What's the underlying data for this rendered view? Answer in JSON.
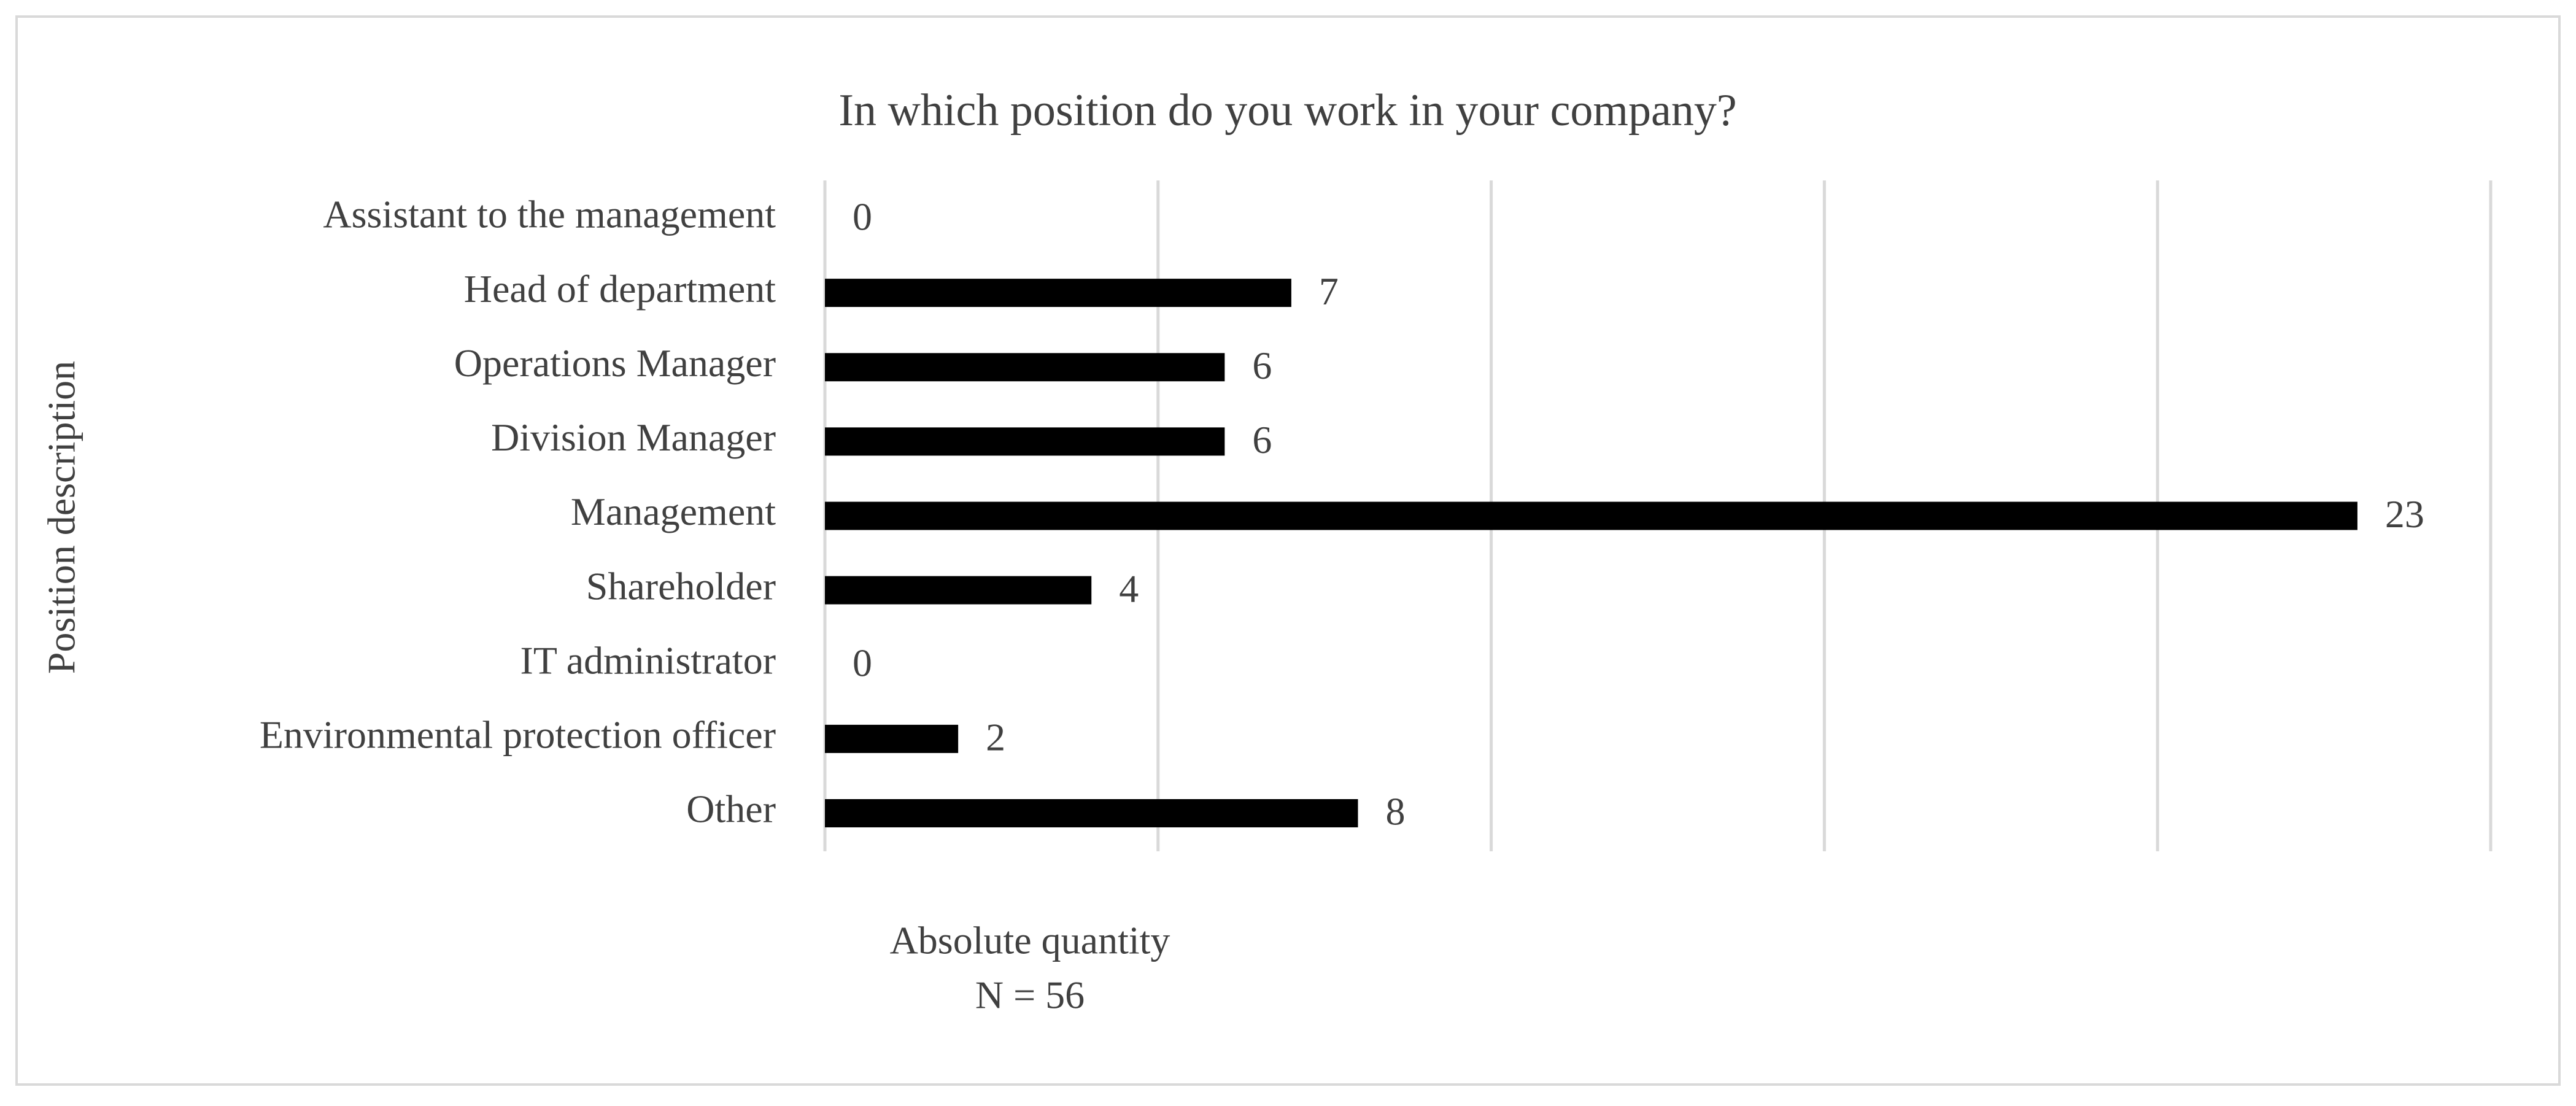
{
  "chart_data": {
    "type": "bar",
    "orientation": "horizontal",
    "title": "In which position do you work in your company?",
    "x_label": "Absolute quantity",
    "annotation": "N = 56",
    "y_label": "Position description",
    "categories": [
      "Assistant to the management",
      "Head of department",
      "Operations Manager",
      "Division Manager",
      "Management",
      "Shareholder",
      "IT administrator",
      "Environmental protection officer",
      "Other"
    ],
    "values": [
      0,
      7,
      6,
      6,
      23,
      4,
      0,
      2,
      8
    ],
    "color": "#000000",
    "xlim": [
      0,
      25
    ],
    "xticks": [
      0,
      5,
      10,
      15,
      20,
      25
    ],
    "grid": true
  }
}
